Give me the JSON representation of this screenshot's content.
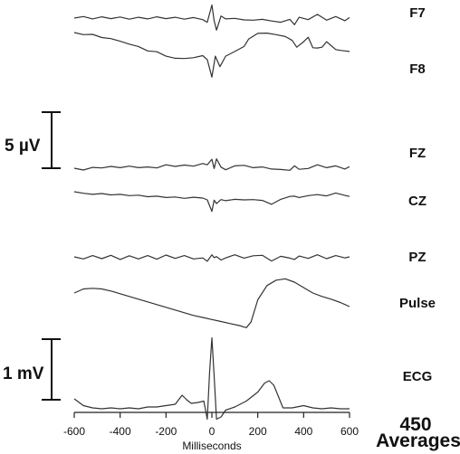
{
  "chart_data": {
    "type": "line",
    "xlabel": "Milliseconds",
    "xlim": [
      -600,
      600
    ],
    "xticks": [
      -600,
      -400,
      -200,
      0,
      200,
      400,
      600
    ],
    "averages_count": "450",
    "averages_label": "Averages",
    "scale_bars": [
      {
        "label": "5 µV",
        "applies_to": "EEG"
      },
      {
        "label": "1 mV",
        "applies_to": "ECG"
      }
    ],
    "series": [
      {
        "name": "F7",
        "points": [
          [
            -600,
            0.0
          ],
          [
            -560,
            0.6
          ],
          [
            -520,
            -0.3
          ],
          [
            -480,
            0.5
          ],
          [
            -440,
            -0.2
          ],
          [
            -400,
            0.4
          ],
          [
            -360,
            -0.4
          ],
          [
            -320,
            0.3
          ],
          [
            -280,
            -0.3
          ],
          [
            -240,
            0.5
          ],
          [
            -200,
            -0.2
          ],
          [
            -160,
            0.3
          ],
          [
            -120,
            -0.4
          ],
          [
            -80,
            0.2
          ],
          [
            -40,
            -0.6
          ],
          [
            -20,
            -1.6
          ],
          [
            0,
            5.0
          ],
          [
            10,
            -1.0
          ],
          [
            20,
            -4.6
          ],
          [
            40,
            0.8
          ],
          [
            60,
            -0.3
          ],
          [
            100,
            -0.1
          ],
          [
            140,
            -0.7
          ],
          [
            180,
            -0.8
          ],
          [
            220,
            -0.5
          ],
          [
            260,
            -1.1
          ],
          [
            300,
            -1.6
          ],
          [
            340,
            -0.5
          ],
          [
            360,
            -2.5
          ],
          [
            380,
            0.3
          ],
          [
            420,
            -0.6
          ],
          [
            460,
            1.4
          ],
          [
            500,
            -0.8
          ],
          [
            540,
            0.6
          ],
          [
            580,
            -1.0
          ],
          [
            600,
            0.2
          ]
        ]
      },
      {
        "name": "F8",
        "points": [
          [
            -600,
            0.0
          ],
          [
            -560,
            -0.8
          ],
          [
            -520,
            -0.7
          ],
          [
            -480,
            -1.9
          ],
          [
            -440,
            -2.3
          ],
          [
            -400,
            -3.3
          ],
          [
            -360,
            -4.4
          ],
          [
            -320,
            -5.3
          ],
          [
            -280,
            -7.0
          ],
          [
            -240,
            -7.3
          ],
          [
            -200,
            -9.0
          ],
          [
            -160,
            -9.8
          ],
          [
            -120,
            -9.9
          ],
          [
            -80,
            -9.6
          ],
          [
            -40,
            -8.8
          ],
          [
            -20,
            -10.3
          ],
          [
            0,
            -17.0
          ],
          [
            15,
            -9.0
          ],
          [
            35,
            -13.0
          ],
          [
            60,
            -9.0
          ],
          [
            100,
            -7.2
          ],
          [
            140,
            -5.3
          ],
          [
            160,
            -2.5
          ],
          [
            200,
            -0.3
          ],
          [
            240,
            -0.2
          ],
          [
            280,
            -0.8
          ],
          [
            320,
            -1.5
          ],
          [
            350,
            -3.0
          ],
          [
            370,
            -5.6
          ],
          [
            400,
            -3.5
          ],
          [
            420,
            -1.8
          ],
          [
            440,
            -5.8
          ],
          [
            460,
            -5.9
          ],
          [
            480,
            -5.6
          ],
          [
            500,
            -3.5
          ],
          [
            520,
            -5.0
          ],
          [
            540,
            -6.5
          ],
          [
            560,
            -6.8
          ],
          [
            600,
            -7.2
          ]
        ]
      },
      {
        "name": "FZ",
        "points": [
          [
            -600,
            0.0
          ],
          [
            -560,
            -0.7
          ],
          [
            -520,
            0.3
          ],
          [
            -480,
            0.1
          ],
          [
            -440,
            0.7
          ],
          [
            -400,
            0.2
          ],
          [
            -360,
            0.8
          ],
          [
            -320,
            0.2
          ],
          [
            -280,
            0.5
          ],
          [
            -240,
            0.1
          ],
          [
            -200,
            1.3
          ],
          [
            -160,
            0.7
          ],
          [
            -120,
            1.2
          ],
          [
            -80,
            0.8
          ],
          [
            -40,
            1.8
          ],
          [
            -20,
            1.3
          ],
          [
            0,
            3.4
          ],
          [
            10,
            -0.1
          ],
          [
            20,
            3.6
          ],
          [
            40,
            0.4
          ],
          [
            60,
            -0.6
          ],
          [
            100,
            0.9
          ],
          [
            140,
            1.1
          ],
          [
            180,
            0.2
          ],
          [
            220,
            0.5
          ],
          [
            260,
            -0.3
          ],
          [
            300,
            -0.5
          ],
          [
            340,
            -0.8
          ],
          [
            360,
            0.9
          ],
          [
            380,
            -0.4
          ],
          [
            420,
            -0.1
          ],
          [
            460,
            1.3
          ],
          [
            500,
            0.2
          ],
          [
            540,
            0.9
          ],
          [
            580,
            -0.3
          ],
          [
            600,
            0.6
          ]
        ]
      },
      {
        "name": "CZ",
        "points": [
          [
            -600,
            0.0
          ],
          [
            -560,
            -0.6
          ],
          [
            -520,
            -1.0
          ],
          [
            -480,
            -0.7
          ],
          [
            -440,
            -1.2
          ],
          [
            -400,
            -1.0
          ],
          [
            -360,
            -1.5
          ],
          [
            -320,
            -1.3
          ],
          [
            -280,
            -1.9
          ],
          [
            -240,
            -1.7
          ],
          [
            -200,
            -2.2
          ],
          [
            -160,
            -2.0
          ],
          [
            -120,
            -2.5
          ],
          [
            -80,
            -2.1
          ],
          [
            -40,
            -2.4
          ],
          [
            -20,
            -3.1
          ],
          [
            0,
            -7.5
          ],
          [
            10,
            -3.2
          ],
          [
            20,
            -4.5
          ],
          [
            40,
            -3.0
          ],
          [
            60,
            -3.4
          ],
          [
            100,
            -2.9
          ],
          [
            140,
            -3.1
          ],
          [
            180,
            -3.0
          ],
          [
            220,
            -3.3
          ],
          [
            260,
            -4.8
          ],
          [
            300,
            -2.9
          ],
          [
            340,
            -1.8
          ],
          [
            360,
            -1.7
          ],
          [
            380,
            -2.2
          ],
          [
            420,
            -1.5
          ],
          [
            460,
            -1.1
          ],
          [
            500,
            -1.6
          ],
          [
            540,
            -0.5
          ],
          [
            580,
            -1.4
          ],
          [
            600,
            -1.8
          ]
        ]
      },
      {
        "name": "PZ",
        "points": [
          [
            -600,
            0.0
          ],
          [
            -560,
            -0.8
          ],
          [
            -520,
            0.5
          ],
          [
            -480,
            -0.7
          ],
          [
            -440,
            0.6
          ],
          [
            -400,
            -1.0
          ],
          [
            -360,
            0.4
          ],
          [
            -320,
            -0.8
          ],
          [
            -280,
            0.5
          ],
          [
            -240,
            -0.9
          ],
          [
            -200,
            0.7
          ],
          [
            -160,
            -0.6
          ],
          [
            -120,
            0.5
          ],
          [
            -80,
            -0.8
          ],
          [
            -40,
            -0.4
          ],
          [
            -20,
            -1.7
          ],
          [
            0,
            0.8
          ],
          [
            10,
            -0.3
          ],
          [
            20,
            0.1
          ],
          [
            40,
            -1.2
          ],
          [
            60,
            -0.4
          ],
          [
            100,
            0.8
          ],
          [
            140,
            -0.5
          ],
          [
            180,
            0.4
          ],
          [
            220,
            0.6
          ],
          [
            260,
            -1.6
          ],
          [
            300,
            0.2
          ],
          [
            340,
            -0.5
          ],
          [
            360,
            -1.0
          ],
          [
            380,
            0.3
          ],
          [
            420,
            -0.6
          ],
          [
            460,
            0.8
          ],
          [
            500,
            -0.7
          ],
          [
            540,
            0.5
          ],
          [
            580,
            -0.4
          ],
          [
            600,
            0.0
          ]
        ]
      },
      {
        "name": "Pulse",
        "points": [
          [
            -600,
            0.0
          ],
          [
            -560,
            0.6
          ],
          [
            -520,
            0.7
          ],
          [
            -480,
            0.6
          ],
          [
            -440,
            0.3
          ],
          [
            -400,
            -0.1
          ],
          [
            -360,
            -0.5
          ],
          [
            -320,
            -0.9
          ],
          [
            -280,
            -1.3
          ],
          [
            -240,
            -1.7
          ],
          [
            -200,
            -2.1
          ],
          [
            -160,
            -2.5
          ],
          [
            -120,
            -2.9
          ],
          [
            -80,
            -3.3
          ],
          [
            -40,
            -3.6
          ],
          [
            0,
            -3.9
          ],
          [
            40,
            -4.2
          ],
          [
            80,
            -4.5
          ],
          [
            120,
            -4.8
          ],
          [
            150,
            -5.1
          ],
          [
            170,
            -4.3
          ],
          [
            200,
            -1.0
          ],
          [
            240,
            1.1
          ],
          [
            280,
            1.9
          ],
          [
            320,
            2.1
          ],
          [
            360,
            1.6
          ],
          [
            400,
            0.8
          ],
          [
            440,
            0.0
          ],
          [
            480,
            -0.5
          ],
          [
            520,
            -0.9
          ],
          [
            560,
            -1.4
          ],
          [
            600,
            -2.0
          ]
        ]
      },
      {
        "name": "ECG",
        "points": [
          [
            -600,
            0.0
          ],
          [
            -560,
            -0.15
          ],
          [
            -520,
            -0.2
          ],
          [
            -480,
            -0.22
          ],
          [
            -440,
            -0.2
          ],
          [
            -400,
            -0.22
          ],
          [
            -360,
            -0.2
          ],
          [
            -320,
            -0.22
          ],
          [
            -280,
            -0.18
          ],
          [
            -240,
            -0.18
          ],
          [
            -200,
            -0.15
          ],
          [
            -160,
            -0.12
          ],
          [
            -130,
            0.08
          ],
          [
            -110,
            -0.02
          ],
          [
            -90,
            -0.1
          ],
          [
            -60,
            -0.08
          ],
          [
            -35,
            -0.05
          ],
          [
            -20,
            -0.45
          ],
          [
            -10,
            0.6
          ],
          [
            0,
            1.35
          ],
          [
            10,
            0.5
          ],
          [
            20,
            -0.45
          ],
          [
            40,
            -0.4
          ],
          [
            60,
            -0.25
          ],
          [
            100,
            -0.18
          ],
          [
            150,
            -0.05
          ],
          [
            200,
            0.15
          ],
          [
            230,
            0.35
          ],
          [
            250,
            0.4
          ],
          [
            270,
            0.3
          ],
          [
            290,
            0.05
          ],
          [
            310,
            -0.2
          ],
          [
            350,
            -0.2
          ],
          [
            400,
            -0.15
          ],
          [
            440,
            -0.2
          ],
          [
            480,
            -0.22
          ],
          [
            520,
            -0.2
          ],
          [
            560,
            -0.22
          ],
          [
            600,
            -0.22
          ]
        ]
      }
    ]
  }
}
